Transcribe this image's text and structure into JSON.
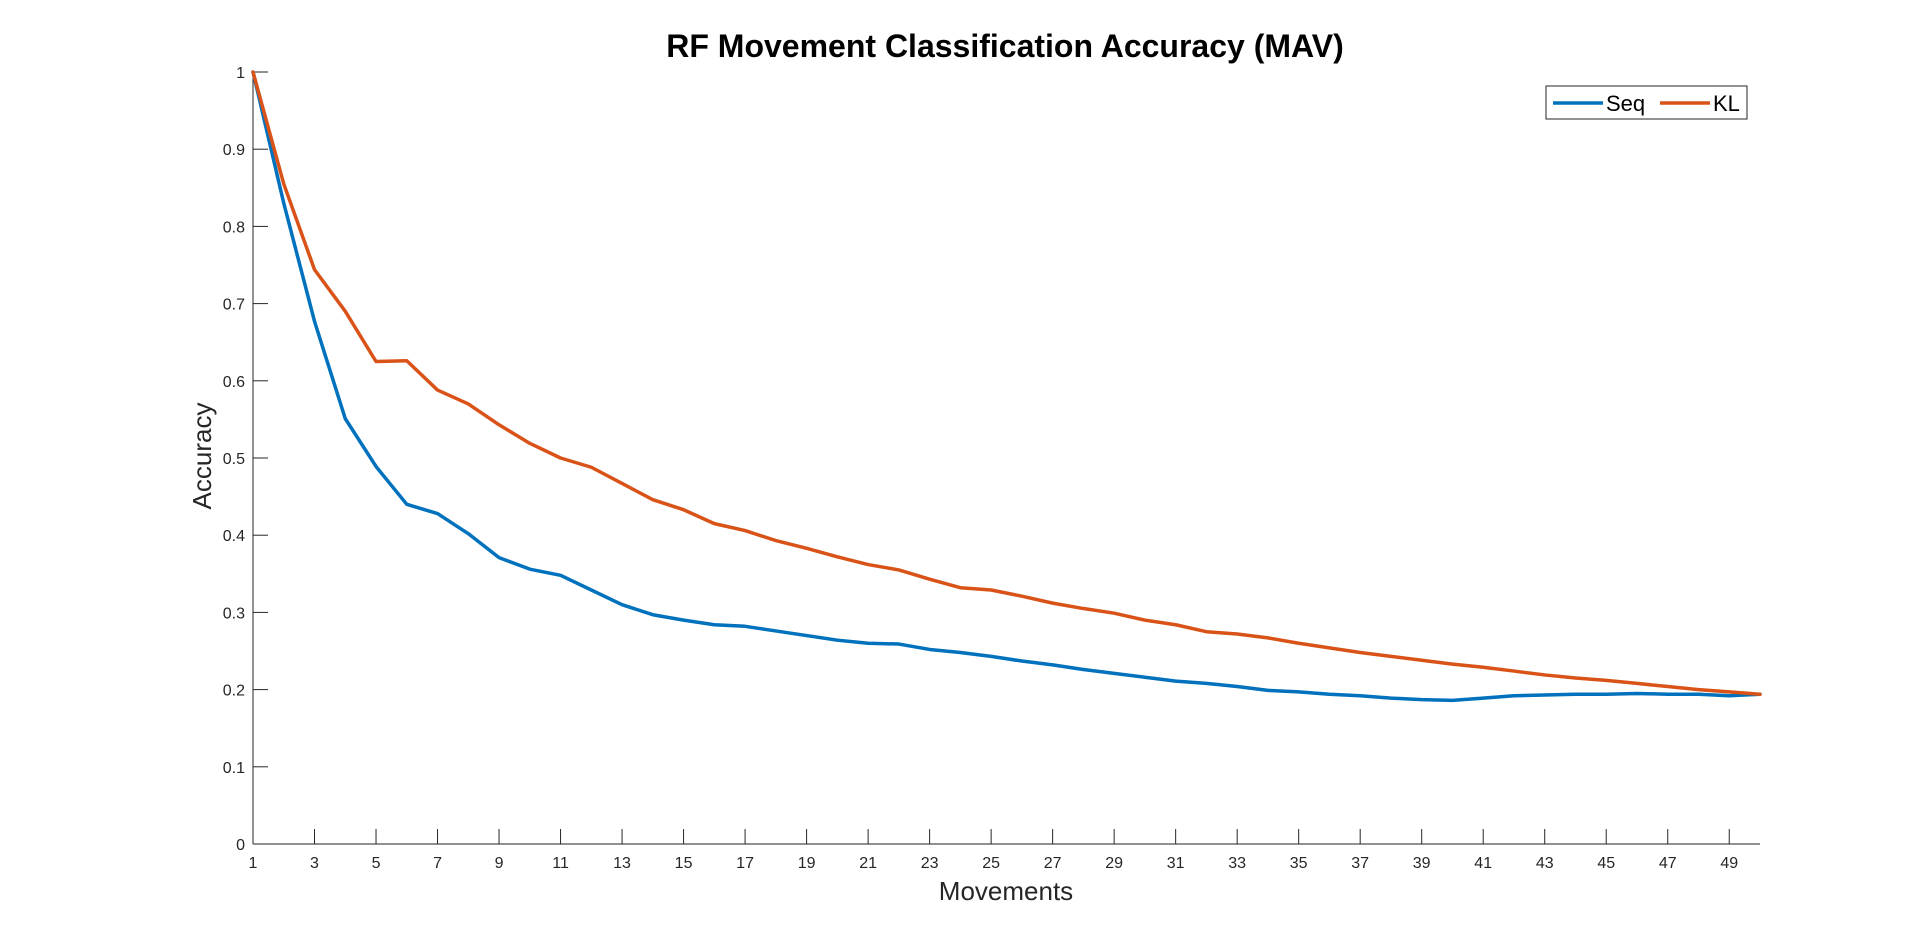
{
  "chart_data": {
    "type": "line",
    "title": "RF Movement Classification Accuracy (MAV)",
    "xlabel": "Movements",
    "ylabel": "Accuracy",
    "xlim": [
      1,
      50
    ],
    "ylim": [
      0,
      1
    ],
    "xticks": [
      1,
      3,
      5,
      7,
      9,
      11,
      13,
      15,
      17,
      19,
      21,
      23,
      25,
      27,
      29,
      31,
      33,
      35,
      37,
      39,
      41,
      43,
      45,
      47,
      49
    ],
    "yticks": [
      0,
      0.1,
      0.2,
      0.3,
      0.4,
      0.5,
      0.6,
      0.7,
      0.8,
      0.9,
      1
    ],
    "grid": false,
    "legend_position": "top-right",
    "x": [
      1,
      2,
      3,
      4,
      5,
      6,
      7,
      8,
      9,
      10,
      11,
      12,
      13,
      14,
      15,
      16,
      17,
      18,
      19,
      20,
      21,
      22,
      23,
      24,
      25,
      26,
      27,
      28,
      29,
      30,
      31,
      32,
      33,
      34,
      35,
      36,
      37,
      38,
      39,
      40,
      41,
      42,
      43,
      44,
      45,
      46,
      47,
      48,
      49,
      50
    ],
    "series": [
      {
        "name": "Seq",
        "color": "#0072BD",
        "values": [
          1.0,
          0.83,
          0.677,
          0.551,
          0.489,
          0.44,
          0.428,
          0.402,
          0.371,
          0.356,
          0.348,
          0.329,
          0.31,
          0.297,
          0.29,
          0.284,
          0.282,
          0.276,
          0.27,
          0.264,
          0.26,
          0.259,
          0.252,
          0.248,
          0.243,
          0.237,
          0.232,
          0.226,
          0.221,
          0.216,
          0.211,
          0.208,
          0.204,
          0.199,
          0.197,
          0.194,
          0.192,
          0.189,
          0.187,
          0.186,
          0.189,
          0.192,
          0.193,
          0.194,
          0.194,
          0.195,
          0.194,
          0.194,
          0.192,
          0.194
        ]
      },
      {
        "name": "KL",
        "color": "#D95319",
        "values": [
          1.0,
          0.855,
          0.744,
          0.69,
          0.625,
          0.626,
          0.588,
          0.57,
          0.543,
          0.519,
          0.5,
          0.488,
          0.467,
          0.446,
          0.433,
          0.415,
          0.406,
          0.393,
          0.383,
          0.372,
          0.362,
          0.355,
          0.343,
          0.332,
          0.329,
          0.321,
          0.312,
          0.305,
          0.299,
          0.29,
          0.284,
          0.275,
          0.272,
          0.267,
          0.26,
          0.254,
          0.248,
          0.243,
          0.238,
          0.233,
          0.229,
          0.224,
          0.219,
          0.215,
          0.212,
          0.208,
          0.204,
          0.2,
          0.197,
          0.194
        ]
      }
    ]
  }
}
